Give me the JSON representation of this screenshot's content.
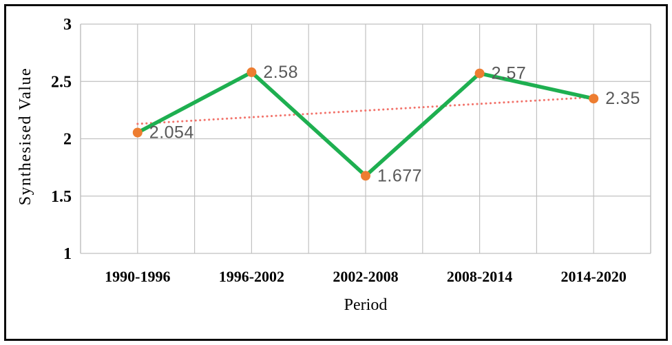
{
  "chart_data": {
    "type": "line",
    "title": "",
    "xlabel": "Period",
    "ylabel": "Synthesised Value",
    "categories": [
      "1990-1996",
      "1996-2002",
      "2002-2008",
      "2008-2014",
      "2014-2020"
    ],
    "series": [
      {
        "name": "Synthesised Value",
        "values": [
          2.054,
          2.58,
          1.677,
          2.57,
          2.35
        ]
      }
    ],
    "data_labels": [
      "2.054",
      "2.58",
      "1.677",
      "2.57",
      "2.35"
    ],
    "ylim": [
      1,
      3
    ],
    "yticks": [
      3,
      2.5,
      2,
      1.5,
      1
    ],
    "ytick_labels": [
      "3",
      "2.5",
      "2",
      "1.5",
      "1"
    ],
    "grid": "horizontal-and-vertical",
    "legend": "none",
    "trendline": {
      "type": "linear",
      "style": "dotted"
    },
    "colors": {
      "line": "#1eaf50",
      "marker": "#ed7d31",
      "trendline": "#f2736b",
      "gridline": "#c1c1c1",
      "data_label": "#595959",
      "axis_text": "#000000",
      "background": "#ffffff",
      "frame_border": "#0c0c0c"
    }
  }
}
